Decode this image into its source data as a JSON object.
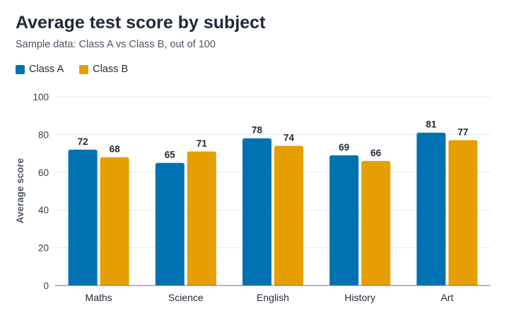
{
  "chart_data": {
    "type": "bar",
    "title": "Average test score by subject",
    "subtitle": "Sample data: Class A vs Class B, out of 100",
    "xlabel": "",
    "ylabel": "Average score",
    "ylim": [
      0,
      100
    ],
    "yticks": [
      0,
      20,
      40,
      60,
      80,
      100
    ],
    "grid": true,
    "legend_position": "top-left",
    "categories": [
      "Maths",
      "Science",
      "English",
      "History",
      "Art"
    ],
    "series": [
      {
        "name": "Class A",
        "color": "#0072B2",
        "values": [
          72,
          65,
          78,
          69,
          81
        ]
      },
      {
        "name": "Class B",
        "color": "#E69F00",
        "values": [
          68,
          71,
          74,
          66,
          77
        ]
      }
    ]
  }
}
